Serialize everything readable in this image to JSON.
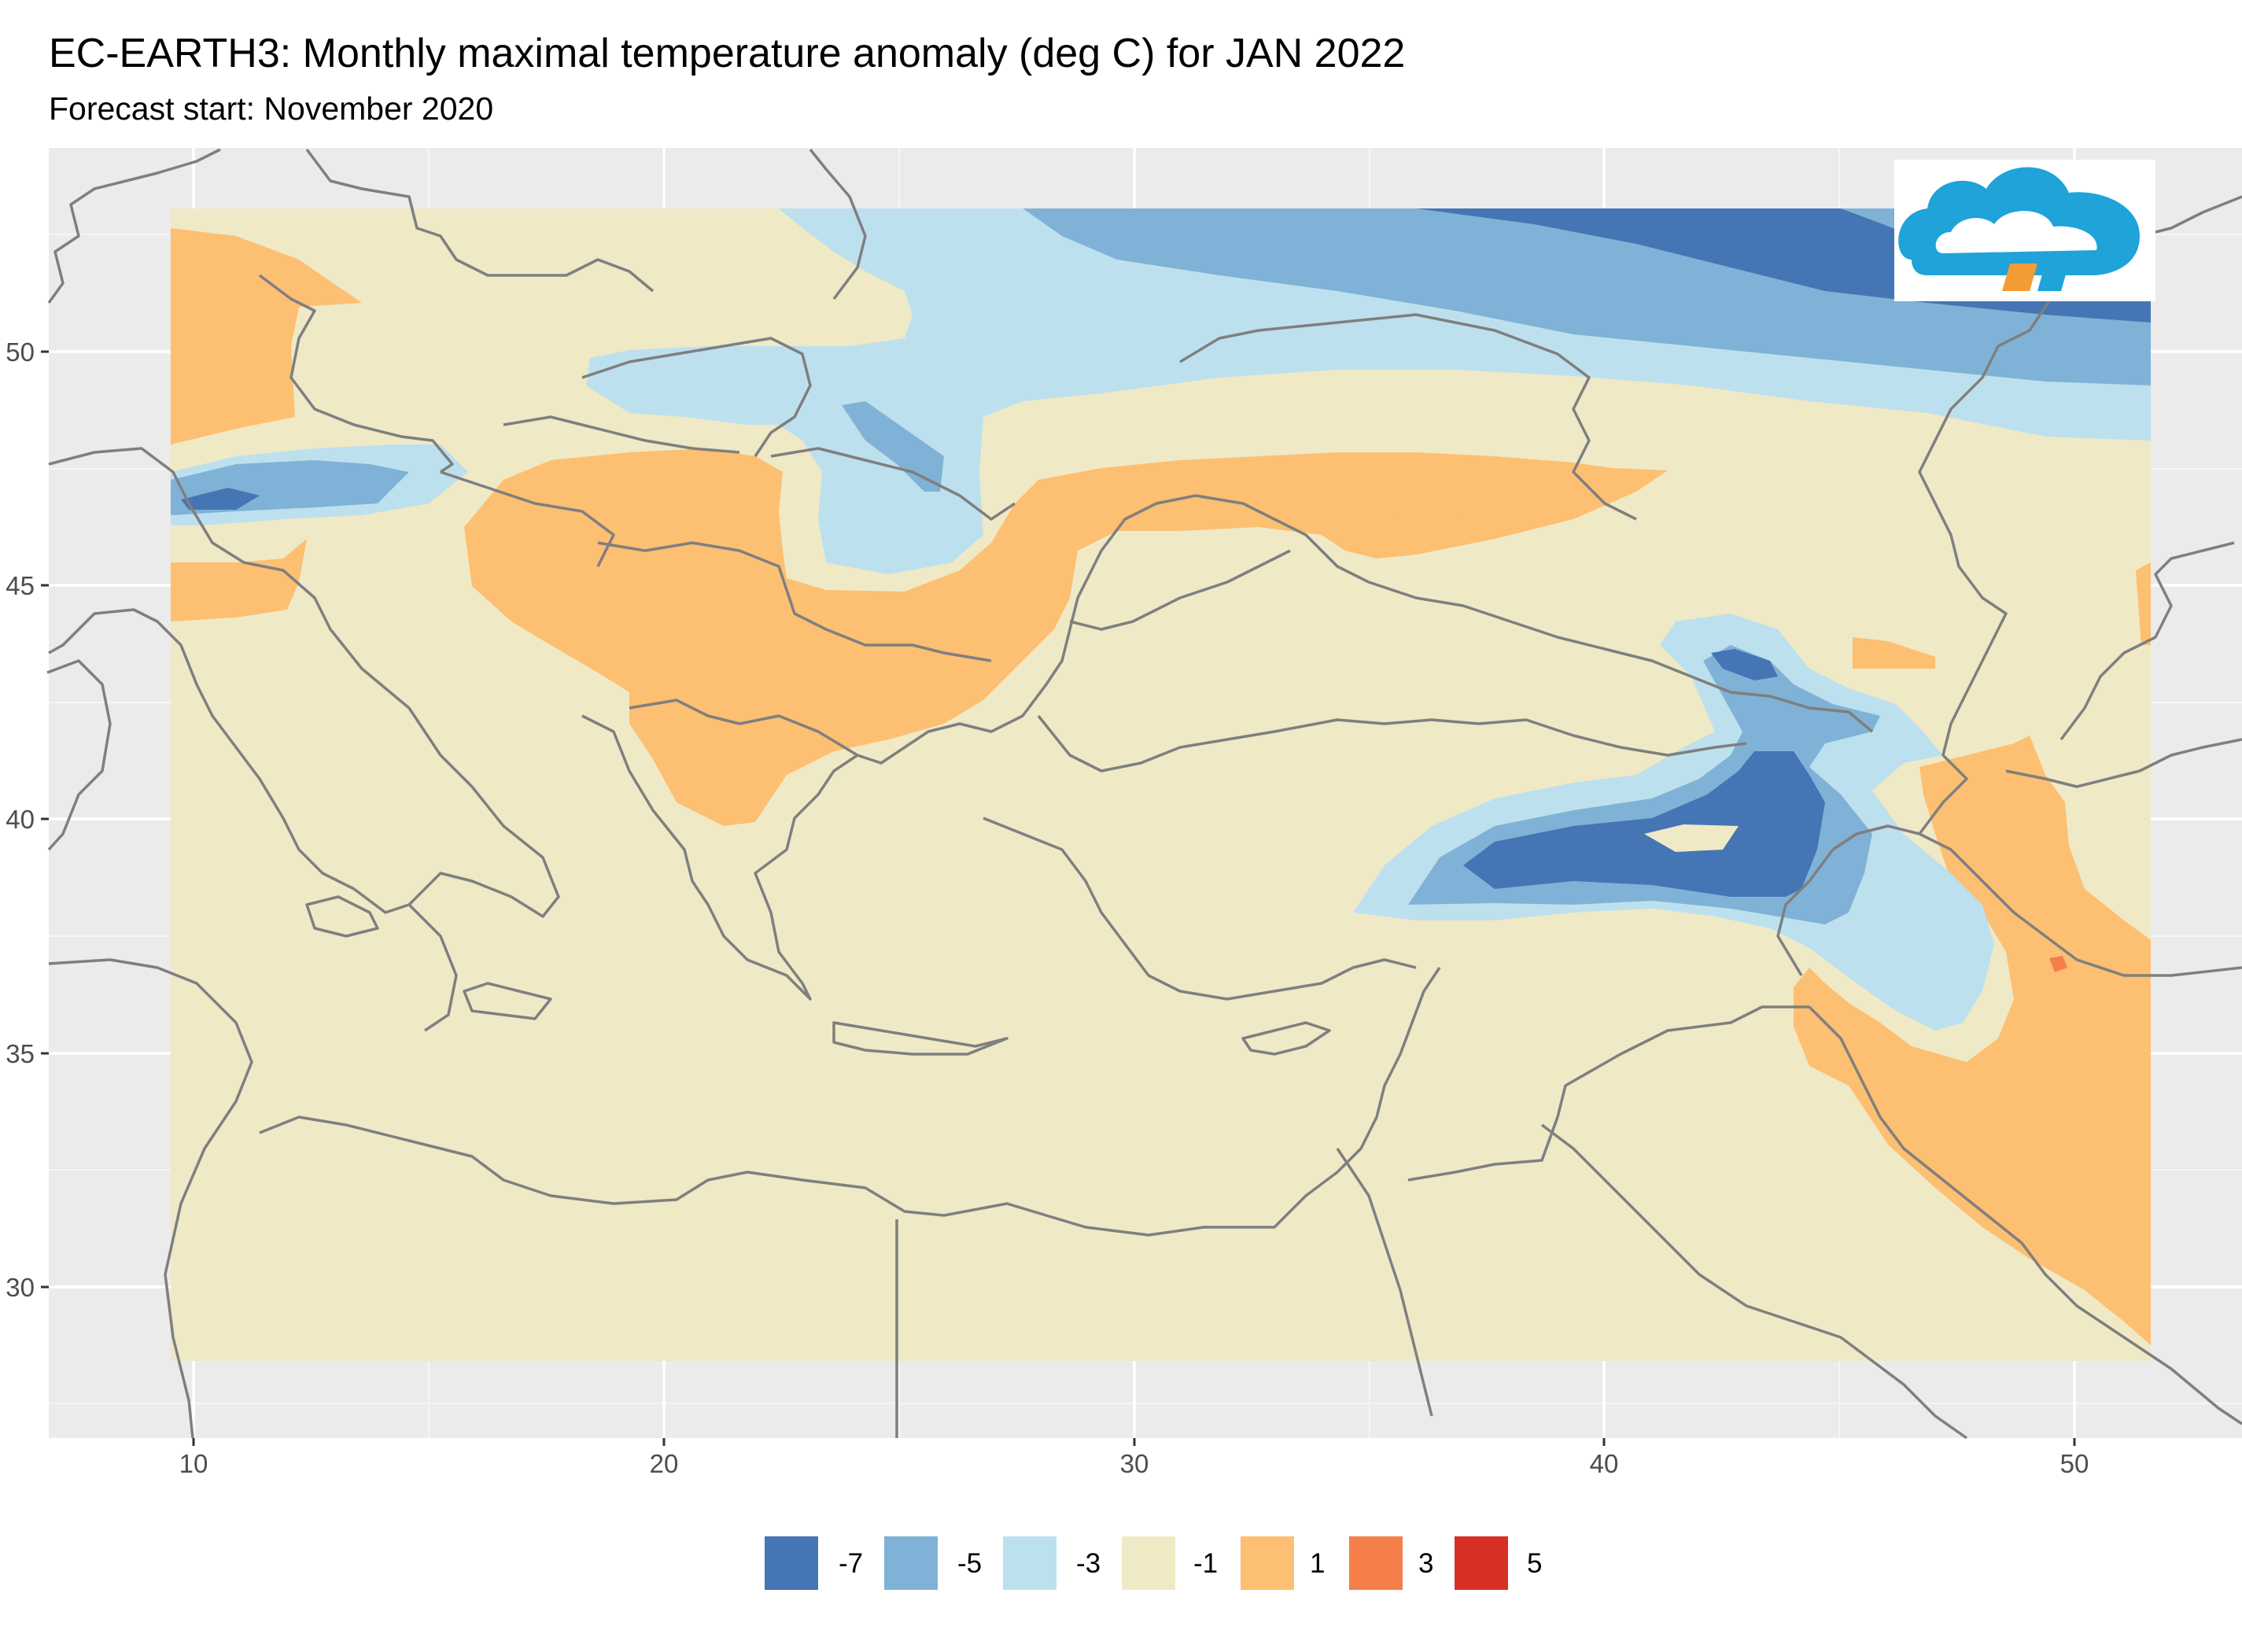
{
  "title": "EC-EARTH3: Monthly maximal temperature anomaly (deg C) for JAN 2022",
  "subtitle": "Forecast start: November 2020",
  "axes": {
    "x_ticks": [
      "10",
      "20",
      "30",
      "40",
      "50"
    ],
    "y_ticks": [
      "30",
      "35",
      "40",
      "45",
      "50"
    ]
  },
  "legend": {
    "items": [
      {
        "label": "-7",
        "color": "#4575b4"
      },
      {
        "label": "-5",
        "color": "#7fb2d6"
      },
      {
        "label": "-3",
        "color": "#bde0ee"
      },
      {
        "label": "-1",
        "color": "#efe9c6"
      },
      {
        "label": "1",
        "color": "#fdbf71"
      },
      {
        "label": "3",
        "color": "#f57f4b"
      },
      {
        "label": "5",
        "color": "#d73027"
      }
    ]
  },
  "colors": {
    "panel_background": "#ebebeb",
    "grid": "#ffffff",
    "coastline": "#7f7f7f",
    "zero_anomaly": "#efe9c6",
    "warm": "#fdbf71",
    "warmer": "#f57f4b",
    "cold": "#bde0ee",
    "colder": "#7fb2d6",
    "coldest": "#4575b4"
  },
  "logo": {
    "icon": "cloud-logo-icon"
  }
}
